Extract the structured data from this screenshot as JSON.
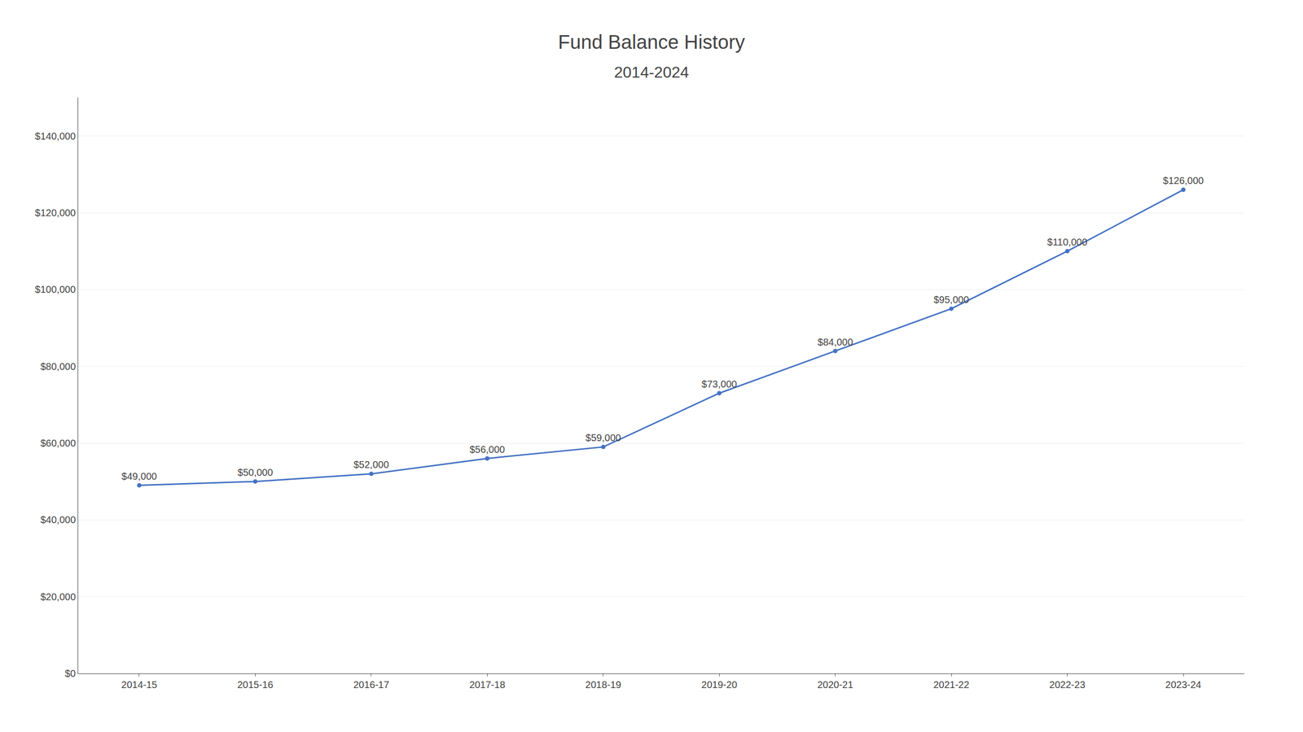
{
  "chart_data": {
    "type": "line",
    "title": "Fund Balance History",
    "subtitle": "2014-2024",
    "categories": [
      "2014-15",
      "2015-16",
      "2016-17",
      "2017-18",
      "2018-19",
      "2019-20",
      "2020-21",
      "2021-22",
      "2022-23",
      "2023-24"
    ],
    "values": [
      49000,
      50000,
      52000,
      56000,
      59000,
      73000,
      84000,
      95000,
      110000,
      126000
    ],
    "value_labels": [
      "$49,000",
      "$50,000",
      "$52,000",
      "$56,000",
      "$59,000",
      "$73,000",
      "$84,000",
      "$95,000",
      "$110,000",
      "$126,000"
    ],
    "data_labels": true,
    "color": "#4472C4",
    "marker": "circle",
    "ylim": [
      0,
      150000
    ],
    "yticks": [
      {
        "value": 0,
        "label": "$0"
      },
      {
        "value": 20000,
        "label": "$20,000"
      },
      {
        "value": 40000,
        "label": "$40,000"
      },
      {
        "value": 60000,
        "label": "$60,000"
      },
      {
        "value": 80000,
        "label": "$80,000"
      },
      {
        "value": 100000,
        "label": "$100,000"
      },
      {
        "value": 120000,
        "label": "$120,000"
      },
      {
        "value": 140000,
        "label": "$140,000"
      }
    ],
    "grid": true
  }
}
